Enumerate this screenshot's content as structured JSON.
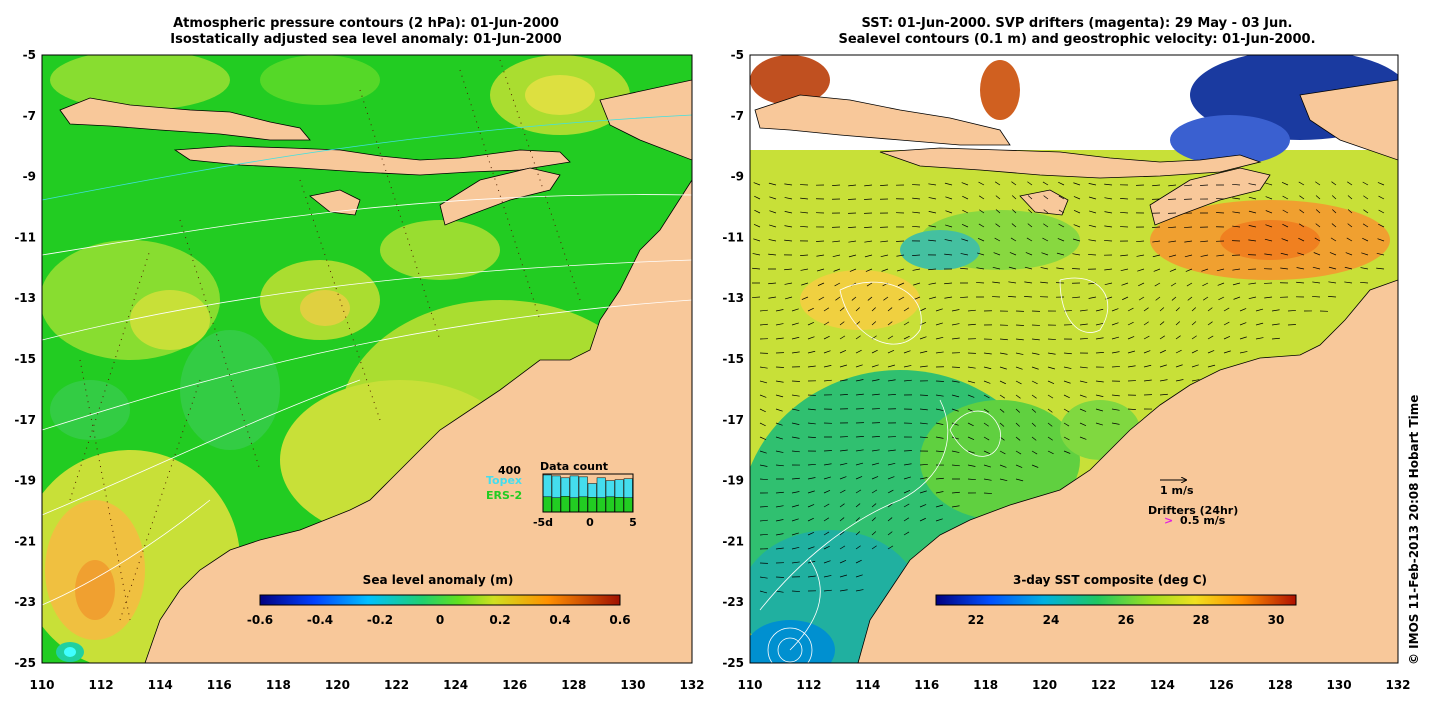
{
  "left_panel": {
    "title_line1": "Atmospheric pressure contours (2 hPa): 01-Jun-2000",
    "title_line2": "Isostatically adjusted sea level anomaly: 01-Jun-2000",
    "colorbar_title": "Sea level anomaly (m)",
    "colorbar_ticks": [
      "-0.6",
      "-0.4",
      "-0.2",
      "0",
      "0.2",
      "0.4",
      "0.6"
    ],
    "inset": {
      "value_label": "400",
      "title": "Data count",
      "series": [
        {
          "name": "Topex",
          "color": "#44ddee"
        },
        {
          "name": "ERS-2",
          "color": "#22cc22"
        }
      ],
      "x_ticks": [
        "-5d",
        "0",
        "5"
      ],
      "topex_counts": [
        390,
        380,
        360,
        380,
        370,
        300,
        360,
        330,
        340,
        350
      ],
      "ers_counts": [
        160,
        150,
        165,
        150,
        160,
        155,
        150,
        160,
        155,
        150
      ]
    }
  },
  "right_panel": {
    "title_line1": "SST: 01-Jun-2000. SVP drifters (magenta): 29 May - 03 Jun.",
    "title_line2": "Sealevel contours (0.1 m) and geostrophic velocity: 01-Jun-2000.",
    "colorbar_title": "3-day SST composite (deg C)",
    "colorbar_ticks": [
      "22",
      "24",
      "26",
      "28",
      "30"
    ],
    "velocity_legend": "1 m/s",
    "drifters_legend": "Drifters (24hr)",
    "drifter_speed": "0.5 m/s"
  },
  "axes": {
    "x_ticks": [
      "110",
      "112",
      "114",
      "116",
      "118",
      "120",
      "122",
      "124",
      "126",
      "128",
      "130",
      "132"
    ],
    "y_ticks": [
      "-5",
      "-7",
      "-9",
      "-11",
      "-13",
      "-15",
      "-17",
      "-19",
      "-21",
      "-23",
      "-25"
    ]
  },
  "copyright": "© IMOS 11-Feb-2013 20:08 Hobart Time",
  "colors": {
    "land": "#f8c89a",
    "sea_green": "#22cc22",
    "sea_yellow": "#cce030",
    "sst_blue": "#1040c0"
  }
}
